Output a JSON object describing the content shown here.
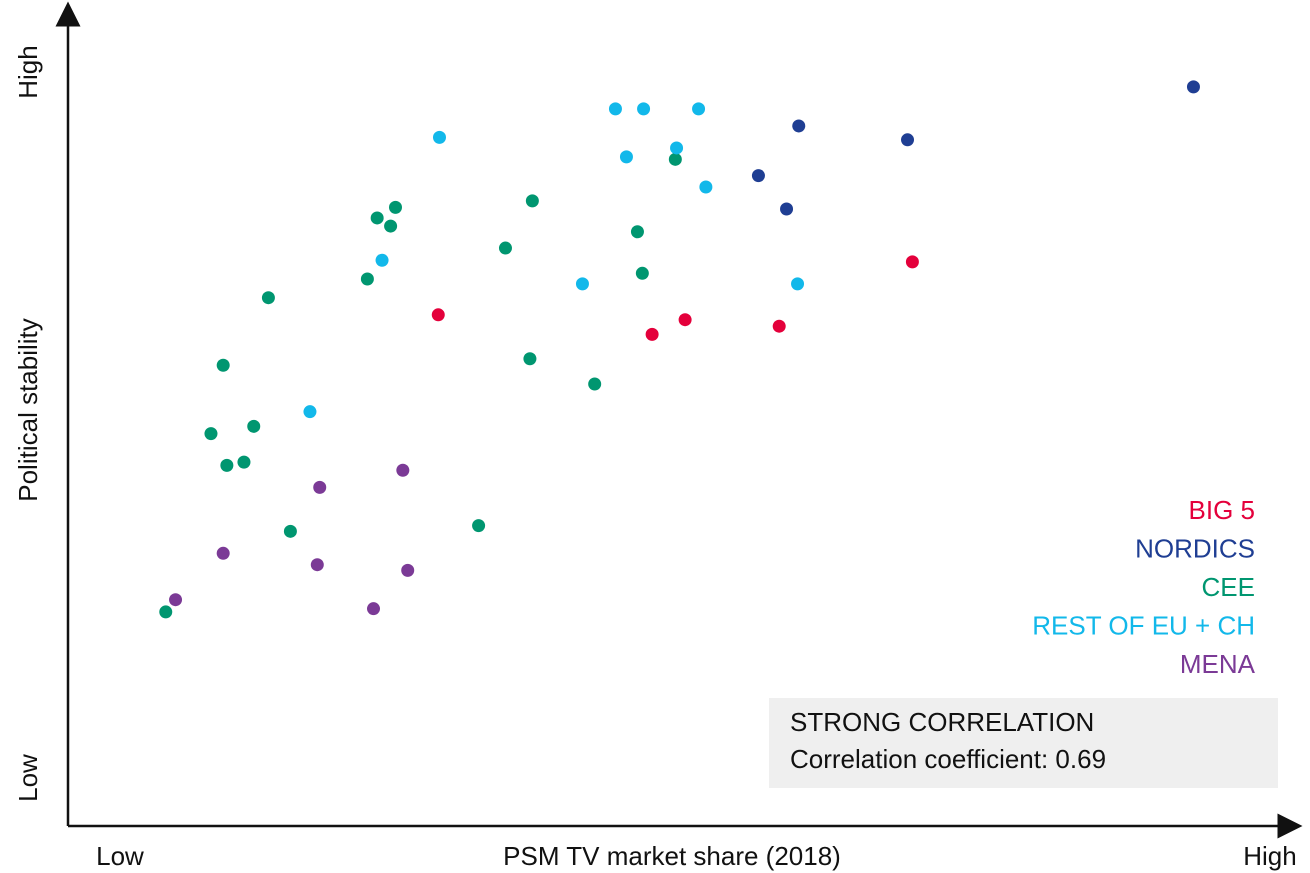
{
  "chart_data": {
    "type": "scatter",
    "xlabel": "PSM TV market share (2018)",
    "ylabel": "Political stability",
    "xlim": [
      0,
      100
    ],
    "ylim": [
      0,
      100
    ],
    "xticks": [
      {
        "value": 0,
        "label": "Low"
      },
      {
        "value": 100,
        "label": "High"
      }
    ],
    "yticks": [
      {
        "value": 0,
        "label": "Low"
      },
      {
        "value": 100,
        "label": "High"
      }
    ],
    "legend": "right",
    "series": [
      {
        "name": "BIG 5",
        "color": "#e4003b",
        "x": [
          30.3,
          47.8,
          50.5,
          58.2,
          69.1
        ],
        "values": [
          62.8,
          60.4,
          62.2,
          61.4,
          69.3
        ]
      },
      {
        "name": "NORDICS",
        "color": "#1f3e93",
        "x": [
          92.1,
          59.8,
          68.7,
          56.5,
          58.8
        ],
        "values": [
          90.8,
          86.0,
          84.3,
          79.9,
          75.8
        ]
      },
      {
        "name": "CEE",
        "color": "#009670",
        "x": [
          8.0,
          11.7,
          12.7,
          13.0,
          14.4,
          15.2,
          16.4,
          18.2,
          24.5,
          25.3,
          26.4,
          26.8,
          33.6,
          35.8,
          37.8,
          38.0,
          43.1,
          46.6,
          47.0,
          49.7
        ],
        "values": [
          26.3,
          48.2,
          56.6,
          44.3,
          44.7,
          49.1,
          64.9,
          36.2,
          67.2,
          74.7,
          73.7,
          76.0,
          36.9,
          71.0,
          57.4,
          76.8,
          54.3,
          73.0,
          67.9,
          81.9
        ]
      },
      {
        "name": "REST OF EU + CH",
        "color": "#12b8ea",
        "x": [
          19.8,
          25.7,
          30.4,
          42.1,
          44.8,
          45.7,
          47.1,
          49.8,
          51.6,
          52.2,
          59.7
        ],
        "values": [
          50.9,
          69.5,
          84.6,
          66.6,
          88.1,
          82.2,
          88.1,
          83.3,
          88.1,
          78.5,
          66.6
        ]
      },
      {
        "name": "MENA",
        "color": "#7b3a96",
        "x": [
          8.8,
          12.7,
          20.4,
          20.6,
          25.0,
          27.4,
          27.8
        ],
        "values": [
          27.8,
          33.5,
          32.1,
          41.6,
          26.7,
          43.7,
          31.4
        ]
      }
    ],
    "annotation": {
      "title": "STRONG CORRELATION",
      "text": "Correlation coefficient: 0.69"
    }
  }
}
